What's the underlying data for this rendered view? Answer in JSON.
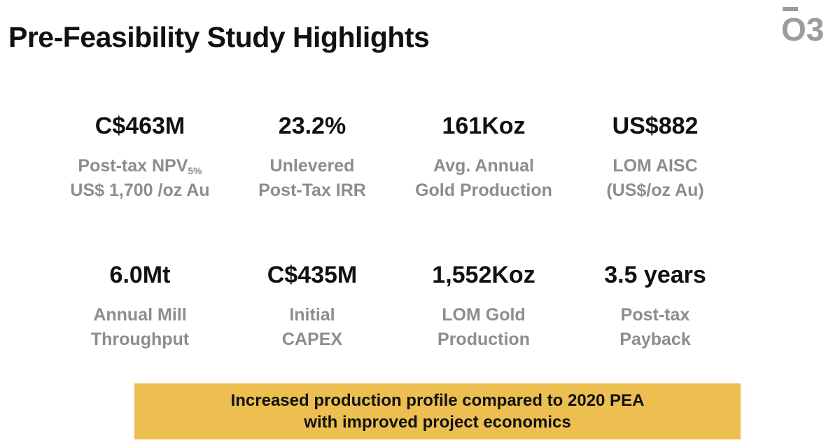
{
  "title": "Pre-Feasibility Study Highlights",
  "logo": {
    "text": "O3"
  },
  "stats": [
    {
      "value": "C$463M",
      "line1": "Post-tax NPV",
      "line1_sub": "5%",
      "line2": "US$ 1,700 /oz Au"
    },
    {
      "value": "23.2%",
      "line1": "Unlevered",
      "line2": "Post-Tax IRR"
    },
    {
      "value": "161Koz",
      "line1": "Avg. Annual",
      "line2": "Gold Production"
    },
    {
      "value": "US$882",
      "line1": "LOM AISC",
      "line2": "(US$/oz Au)"
    },
    {
      "value": "6.0Mt",
      "line1": "Annual Mill",
      "line2": "Throughput"
    },
    {
      "value": "C$435M",
      "line1": "Initial",
      "line2": "CAPEX"
    },
    {
      "value": "1,552Koz",
      "line1": "LOM Gold",
      "line2": "Production"
    },
    {
      "value": "3.5 years",
      "line1": "Post-tax",
      "line2": "Payback"
    }
  ],
  "banner": {
    "line1": "Increased production profile compared to 2020 PEA",
    "line2": "with improved project economics"
  },
  "colors": {
    "accent": "#ecbf50",
    "label_gray": "#8d8d8d",
    "logo_gray": "#9c9c9c"
  }
}
